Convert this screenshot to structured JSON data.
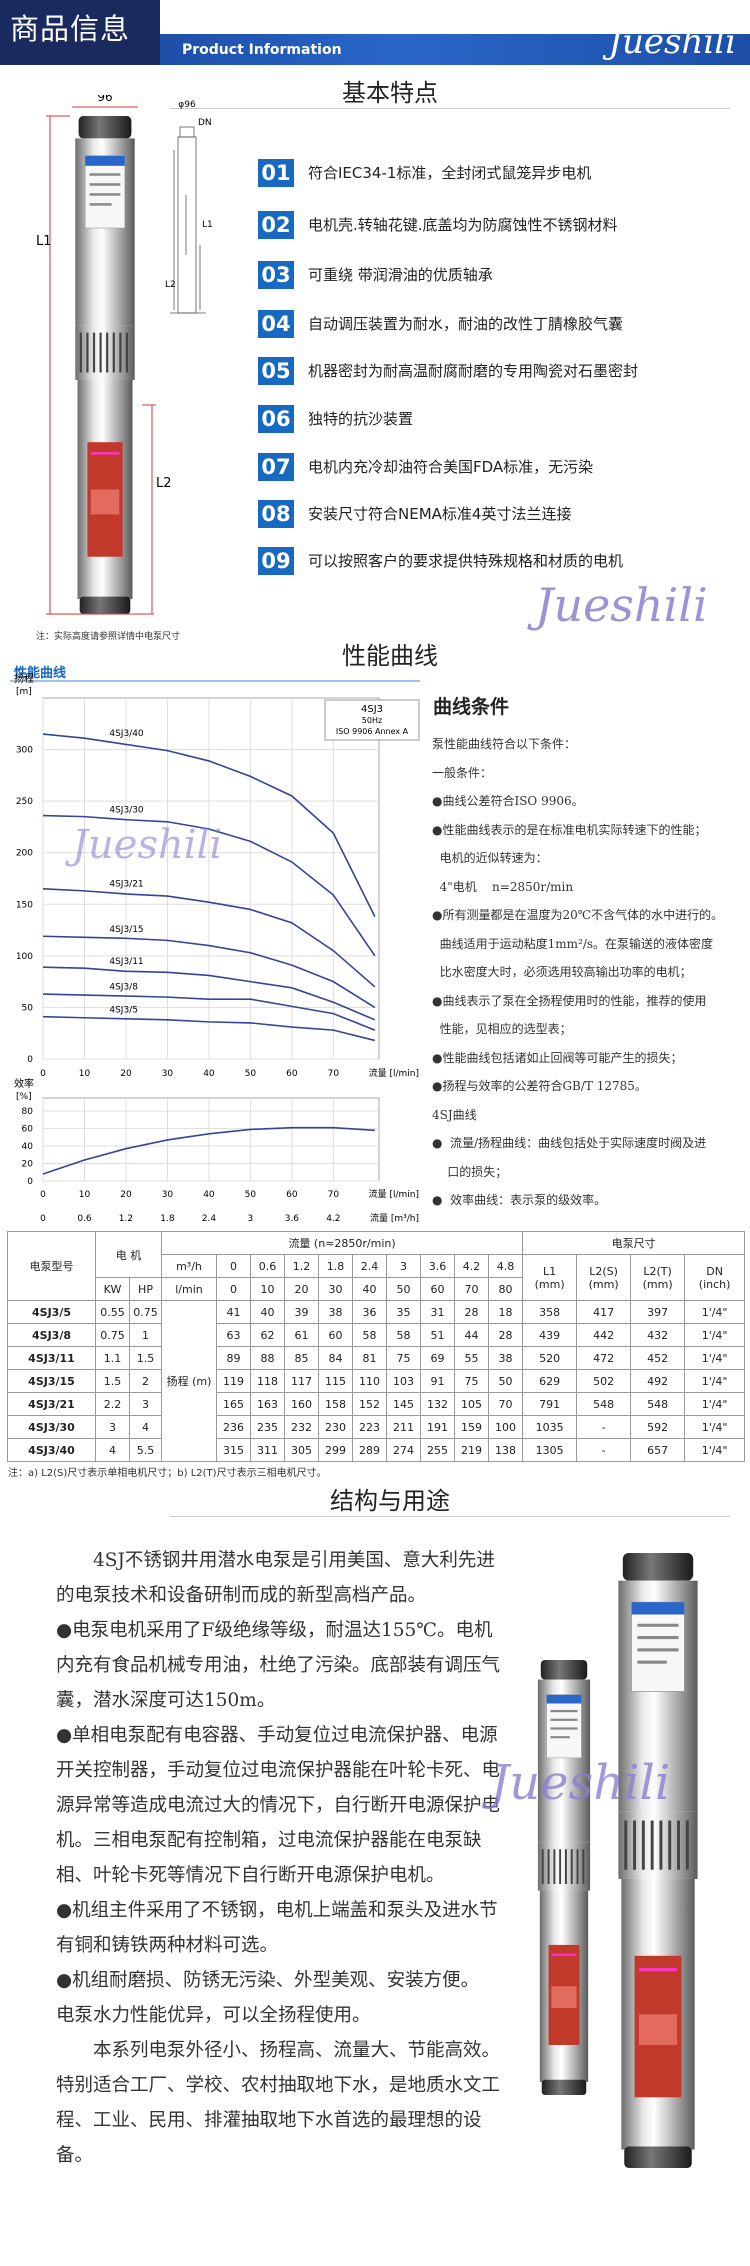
{
  "header": {
    "title": "商品信息",
    "subtitle": "Product Information",
    "brand": "Jueshili"
  },
  "features": {
    "title": "基本特点",
    "items": [
      {
        "num": "01",
        "text": "符合IEC34-1标准，全封闭式鼠笼异步电机"
      },
      {
        "num": "02",
        "text": "电机壳.转轴花键.底盖均为防腐蚀性不锈钢材料"
      },
      {
        "num": "03",
        "text": "可重绕 带润滑油的优质轴承"
      },
      {
        "num": "04",
        "text": "自动调压装置为耐水，耐油的改性丁腈橡胶气囊"
      },
      {
        "num": "05",
        "text": "机器密封为耐高温耐腐耐磨的专用陶瓷对石墨密封"
      },
      {
        "num": "06",
        "text": "独特的抗沙装置"
      },
      {
        "num": "07",
        "text": "电机内充冷却油符合美国FDA标准，无污染"
      },
      {
        "num": "08",
        "text": "安装尺寸符合NEMA标准4英寸法兰连接"
      },
      {
        "num": "09",
        "text": "可以按照客户的要求提供特殊规格和材质的电机"
      }
    ],
    "dims": {
      "diameter": "96",
      "diameter_small": "φ96",
      "dn": "DN",
      "l1": "L1",
      "l2": "L2"
    },
    "note": "注：实际高度请参照详情中电泵尺寸",
    "watermark": "Jueshili"
  },
  "performance": {
    "title": "性能曲线",
    "tab": "性能曲线",
    "chart": {
      "type": "line",
      "color": "#34449a",
      "xlim": [
        0,
        81
      ],
      "xticks": [
        0,
        10,
        20,
        30,
        40,
        50,
        60,
        70
      ],
      "x2ticks": [
        0,
        0.6,
        1.2,
        1.8,
        2.4,
        3,
        3.6,
        4.2
      ],
      "x_label": "流量 [l/min]",
      "x2_label": "流量 [m³/h]",
      "y_label": "扬程",
      "y_unit": "[m]",
      "ylim": [
        0,
        350
      ],
      "yticks": [
        0,
        50,
        100,
        150,
        200,
        250,
        300
      ],
      "grid": true,
      "legend": [
        "4SJ3",
        "50Hz",
        "ISO 9906 Annex A"
      ],
      "efficiency": {
        "y_label": "效率",
        "y_unit": "[%]",
        "ylim": [
          0,
          95
        ],
        "yticks": [
          0,
          20,
          40,
          60,
          80
        ],
        "values": [
          8,
          24,
          37,
          47,
          54,
          59,
          61,
          61,
          58
        ]
      }
    },
    "conditions": {
      "title": "曲线条件",
      "lines": [
        "泵性能曲线符合以下条件：",
        "一般条件：",
        "●曲线公差符合ISO 9906。",
        "●性能曲线表示的是在标准电机实际转速下的性能；",
        "  电机的近似转速为：",
        "  4\"电机    n=2850r/min",
        "●所有测量都是在温度为20℃不含气体的水中进行的。",
        "  曲线适用于运动粘度1mm²/s。在泵输送的液体密度",
        "  比水密度大时，必须选用较高输出功率的电机；",
        "●曲线表示了泵在全扬程使用时的性能，推荐的使用",
        "  性能，见相应的选型表；",
        "●性能曲线包括诸如止回阀等可能产生的损失；",
        "●扬程与效率的公差符合GB/T 12785。",
        "4SJ曲线",
        "●  流量/扬程曲线：曲线包括处于实际速度时阀及进",
        "    口的损失；",
        "●  效率曲线：表示泵的级效率。"
      ]
    },
    "watermark": "Jueshili"
  },
  "table": {
    "header": {
      "model": "电泵型号",
      "motor": "电 机",
      "kw": "KW",
      "hp": "HP",
      "flow": "流量   (n≈2850r/min)",
      "m3h": "m³/h",
      "lmin": "l/min",
      "head": "扬程 (m)",
      "size": "电泵尺寸",
      "l1": "L1",
      "l2s": "L2(S)",
      "l2t": "L2(T)",
      "dn": "DN",
      "mm": "(mm)",
      "inch": "(inch)"
    },
    "m3h": [
      0,
      0.6,
      1.2,
      1.8,
      2.4,
      3,
      3.6,
      4.2,
      4.8
    ],
    "lmin": [
      0,
      10,
      20,
      30,
      40,
      50,
      60,
      70,
      80
    ],
    "rows": [
      {
        "model": "4SJ3/5",
        "kw": "0.55",
        "hp": "0.75",
        "head": [
          41,
          40,
          39,
          38,
          36,
          35,
          31,
          28,
          18
        ],
        "l1": "358",
        "l2s": "417",
        "l2t": "397",
        "dn": "1'/4\""
      },
      {
        "model": "4SJ3/8",
        "kw": "0.75",
        "hp": "1",
        "head": [
          63,
          62,
          61,
          60,
          58,
          58,
          51,
          44,
          28
        ],
        "l1": "439",
        "l2s": "442",
        "l2t": "432",
        "dn": "1'/4\""
      },
      {
        "model": "4SJ3/11",
        "kw": "1.1",
        "hp": "1.5",
        "head": [
          89,
          88,
          85,
          84,
          81,
          75,
          69,
          55,
          38
        ],
        "l1": "520",
        "l2s": "472",
        "l2t": "452",
        "dn": "1'/4\""
      },
      {
        "model": "4SJ3/15",
        "kw": "1.5",
        "hp": "2",
        "head": [
          119,
          118,
          117,
          115,
          110,
          103,
          91,
          75,
          50
        ],
        "l1": "629",
        "l2s": "502",
        "l2t": "492",
        "dn": "1'/4\""
      },
      {
        "model": "4SJ3/21",
        "kw": "2.2",
        "hp": "3",
        "head": [
          165,
          163,
          160,
          158,
          152,
          145,
          132,
          105,
          70
        ],
        "l1": "791",
        "l2s": "548",
        "l2t": "548",
        "dn": "1'/4\""
      },
      {
        "model": "4SJ3/30",
        "kw": "3",
        "hp": "4",
        "head": [
          236,
          235,
          232,
          230,
          223,
          211,
          191,
          159,
          100
        ],
        "l1": "1035",
        "l2s": "-",
        "l2t": "592",
        "dn": "1'/4\""
      },
      {
        "model": "4SJ3/40",
        "kw": "4",
        "hp": "5.5",
        "head": [
          315,
          311,
          305,
          299,
          289,
          274,
          255,
          219,
          138
        ],
        "l1": "1305",
        "l2s": "-",
        "l2t": "657",
        "dn": "1'/4\""
      }
    ],
    "note": "注：a) L2(S)尺寸表示单相电机尺寸；b) L2(T)尺寸表示三相电机尺寸。"
  },
  "structure": {
    "title": "结构与用途",
    "paragraphs": [
      "4SJ不锈钢井用潜水电泵是引用美国、意大利先进的电泵技术和设备研制而成的新型高档产品。",
      "●电泵电机采用了F级绝缘等级，耐温达155℃。电机内充有食品机械专用油，杜绝了污染。底部装有调压气囊，潜水深度可达150m。",
      "●单相电泵配有电容器、手动复位过电流保护器、电源开关控制器，手动复位过电流保护器能在叶轮卡死、电源异常等造成电流过大的情况下，自行断开电源保护电机。三相电泵配有控制箱，过电流保护器能在电泵缺相、叶轮卡死等情况下自行断开电源保护电机。",
      "●机组主件采用了不锈钢，电机上端盖和泵头及进水节有铜和铸铁两种材料可选。",
      "●机组耐磨损、防锈无污染、外型美观、安装方便。",
      "电泵水力性能优异，可以全扬程使用。",
      "本系列电泵外径小、扬程高、流量大、节能高效。特别适合工厂、学校、农村抽取地下水，是地质水文工程、工业、民用、排灌抽取地下水首选的最理想的设备。"
    ],
    "watermark": "Jueshili"
  }
}
